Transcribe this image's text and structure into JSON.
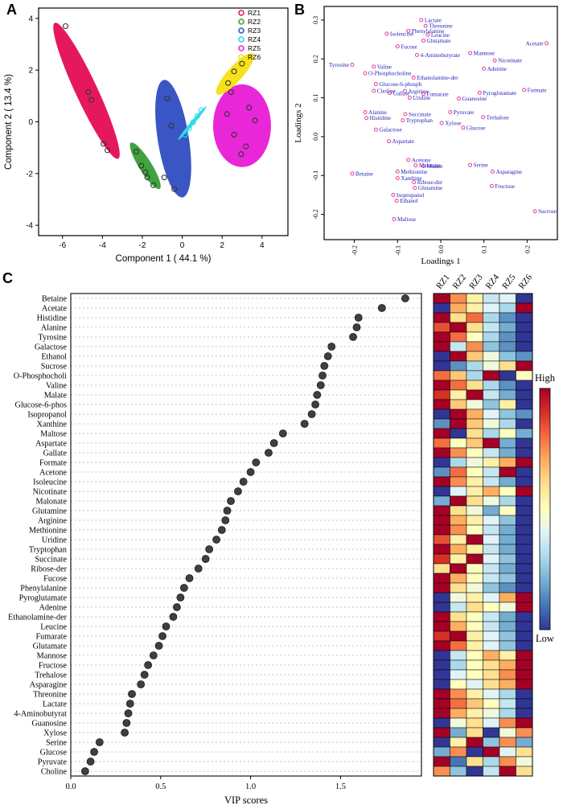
{
  "labels": {
    "a": "A",
    "b": "B",
    "c": "C"
  },
  "colors": {
    "loading_point": "#e8399a",
    "loading_label": "#2424bb",
    "vip_dot": "#3f3f3f",
    "grid": "#b5b5b5",
    "heat_stops": [
      "#313695",
      "#4575B4",
      "#74ADD1",
      "#ABD9E9",
      "#E0F3F8",
      "#FFFFBF",
      "#FEE090",
      "#FDAE61",
      "#F46D43",
      "#D73027",
      "#A50026"
    ]
  },
  "chart_data": [
    {
      "id": "pca_scores",
      "type": "scatter",
      "xlabel": "Component 1 ( 44.1 %)",
      "ylabel": "Component 2 ( 13.4 %)",
      "xlim": [
        -7.2,
        5.3
      ],
      "ylim": [
        -4.4,
        4.4
      ],
      "xticks": [
        -6,
        -4,
        -2,
        0,
        2,
        4
      ],
      "yticks": [
        -4,
        -2,
        0,
        2,
        4
      ],
      "legend_position": "top-right",
      "groups": [
        {
          "label": "RZ1",
          "color": "#e5185e",
          "point_color": "#333333",
          "ellipse": {
            "cx": -4.8,
            "cy": 1.2,
            "rx": 0.55,
            "ry": 2.9,
            "rot": -25
          },
          "points": [
            [
              -5.85,
              3.7
            ],
            [
              -4.7,
              1.15
            ],
            [
              -4.55,
              0.85
            ],
            [
              -3.95,
              -0.85
            ],
            [
              -3.75,
              -1.1
            ]
          ]
        },
        {
          "label": "RZ2",
          "color": "#3fa33f",
          "point_color": "#333333",
          "ellipse": {
            "cx": -1.85,
            "cy": -1.7,
            "rx": 0.32,
            "ry": 1.05,
            "rot": -32
          },
          "points": [
            [
              -2.3,
              -1.15
            ],
            [
              -2.05,
              -1.7
            ],
            [
              -1.85,
              -1.95
            ],
            [
              -1.75,
              -2.15
            ],
            [
              -1.45,
              -2.45
            ]
          ]
        },
        {
          "label": "RZ3",
          "color": "#3a55c4",
          "point_color": "#333333",
          "ellipse": {
            "cx": -0.45,
            "cy": -0.65,
            "rx": 0.78,
            "ry": 2.3,
            "rot": -9
          },
          "points": [
            [
              -0.75,
              0.9
            ],
            [
              -0.55,
              -0.15
            ],
            [
              -0.9,
              -2.15
            ],
            [
              -0.4,
              -2.6
            ]
          ]
        },
        {
          "label": "RZ4",
          "color": "#2fd9e8",
          "point_color": "#2fd9e8",
          "ellipse": {
            "cx": 0.5,
            "cy": -0.05,
            "rx": 0.09,
            "ry": 0.85,
            "rot": 40
          },
          "points": [
            [
              0.15,
              -0.5
            ],
            [
              0.35,
              -0.25
            ],
            [
              0.55,
              -0.02
            ],
            [
              0.75,
              0.22
            ],
            [
              0.95,
              0.45
            ]
          ]
        },
        {
          "label": "RZ5",
          "color": "#ea27d8",
          "point_color": "#333333",
          "ellipse": {
            "cx": 3.0,
            "cy": -0.15,
            "rx": 1.45,
            "ry": 1.6,
            "rot": 0
          },
          "points": [
            [
              2.25,
              0.3
            ],
            [
              2.6,
              -0.5
            ],
            [
              3.2,
              -0.95
            ],
            [
              3.65,
              0.05
            ],
            [
              2.95,
              -1.25
            ],
            [
              3.35,
              0.55
            ]
          ]
        },
        {
          "label": "RZ6",
          "color": "#f7e11c",
          "point_color": "#333333",
          "ellipse": {
            "cx": 2.65,
            "cy": 1.85,
            "rx": 0.38,
            "ry": 1.05,
            "rot": 42
          },
          "points": [
            [
              2.3,
              1.5
            ],
            [
              2.6,
              1.95
            ],
            [
              3.0,
              2.25
            ],
            [
              2.45,
              1.15
            ]
          ]
        }
      ]
    },
    {
      "id": "loadings",
      "type": "scatter",
      "xlabel": "Loadings 1",
      "ylabel": "Loadings 2",
      "xlim": [
        -0.27,
        0.27
      ],
      "ylim": [
        -0.265,
        0.335
      ],
      "xticks": [
        "-0.2",
        "-0.1",
        "0.0",
        "0.1",
        "0.2"
      ],
      "yticks": [
        "-0.2",
        "-0.1",
        "0.0",
        "0.1",
        "0.2",
        "0.3"
      ],
      "points": [
        {
          "l": "Lactate",
          "x": -0.045,
          "y": 0.3
        },
        {
          "l": "Threonine",
          "x": -0.035,
          "y": 0.285
        },
        {
          "l": "Phenylalanine",
          "x": -0.075,
          "y": 0.272
        },
        {
          "l": "Leucine",
          "x": -0.03,
          "y": 0.262
        },
        {
          "l": "Glutamate",
          "x": -0.04,
          "y": 0.247
        },
        {
          "l": "Isoleucine",
          "x": -0.125,
          "y": 0.265
        },
        {
          "l": "Fucose",
          "x": -0.1,
          "y": 0.232
        },
        {
          "l": "4-Aminobutyrate",
          "x": -0.055,
          "y": 0.21
        },
        {
          "l": "Mannose",
          "x": 0.068,
          "y": 0.215
        },
        {
          "l": "Acetate",
          "x": 0.245,
          "y": 0.24,
          "s": "left"
        },
        {
          "l": "Nicotinate",
          "x": 0.125,
          "y": 0.196
        },
        {
          "l": "Adenine",
          "x": 0.1,
          "y": 0.175
        },
        {
          "l": "Tyrosine",
          "x": -0.205,
          "y": 0.185,
          "s": "left"
        },
        {
          "l": "Valine",
          "x": -0.155,
          "y": 0.18
        },
        {
          "l": "O-Phosphocholine",
          "x": -0.175,
          "y": 0.163
        },
        {
          "l": "Ethanolamine-der",
          "x": -0.063,
          "y": 0.152
        },
        {
          "l": "Glucose-6-phosph",
          "x": -0.15,
          "y": 0.135
        },
        {
          "l": "Choline",
          "x": -0.155,
          "y": 0.118
        },
        {
          "l": "Gallate",
          "x": -0.118,
          "y": 0.112
        },
        {
          "l": "Arginine",
          "x": -0.083,
          "y": 0.117
        },
        {
          "l": "Fumarate",
          "x": -0.04,
          "y": 0.11
        },
        {
          "l": "Uridine",
          "x": -0.072,
          "y": 0.1
        },
        {
          "l": "Guanosine",
          "x": 0.042,
          "y": 0.098
        },
        {
          "l": "Pyroglutamate",
          "x": 0.09,
          "y": 0.113
        },
        {
          "l": "Formate",
          "x": 0.193,
          "y": 0.12
        },
        {
          "l": "Alanine",
          "x": -0.175,
          "y": 0.063
        },
        {
          "l": "Histidine",
          "x": -0.172,
          "y": 0.048
        },
        {
          "l": "Succinate",
          "x": -0.082,
          "y": 0.058
        },
        {
          "l": "Tryptophan",
          "x": -0.088,
          "y": 0.042
        },
        {
          "l": "Pyruvate",
          "x": 0.022,
          "y": 0.063
        },
        {
          "l": "Trehalose",
          "x": 0.098,
          "y": 0.05
        },
        {
          "l": "Xylose",
          "x": 0.002,
          "y": 0.035
        },
        {
          "l": "Glucose",
          "x": 0.052,
          "y": 0.023
        },
        {
          "l": "Galactose",
          "x": -0.15,
          "y": 0.018
        },
        {
          "l": "Aspartate",
          "x": -0.12,
          "y": -0.012
        },
        {
          "l": "Acetone",
          "x": -0.075,
          "y": -0.06
        },
        {
          "l": "Malonate",
          "x": -0.058,
          "y": -0.074
        },
        {
          "l": "Malate",
          "x": -0.04,
          "y": -0.076
        },
        {
          "l": "Methionine",
          "x": -0.1,
          "y": -0.09
        },
        {
          "l": "Serine",
          "x": 0.068,
          "y": -0.073
        },
        {
          "l": "Asparagine",
          "x": 0.12,
          "y": -0.09
        },
        {
          "l": "Betaine",
          "x": -0.205,
          "y": -0.095
        },
        {
          "l": "Xanthine",
          "x": -0.1,
          "y": -0.107
        },
        {
          "l": "Ribose-der",
          "x": -0.062,
          "y": -0.117
        },
        {
          "l": "Glutamine",
          "x": -0.06,
          "y": -0.132
        },
        {
          "l": "Fructose",
          "x": 0.118,
          "y": -0.127
        },
        {
          "l": "Isopropanol",
          "x": -0.11,
          "y": -0.15
        },
        {
          "l": "Ethanol",
          "x": -0.102,
          "y": -0.165
        },
        {
          "l": "Sucrose",
          "x": 0.218,
          "y": -0.192
        },
        {
          "l": "Maltose",
          "x": -0.108,
          "y": -0.212
        }
      ]
    },
    {
      "id": "vip",
      "type": "scatter",
      "xlabel": "VIP scores",
      "xlim": [
        0,
        1.95
      ],
      "xticks": [
        "0.0",
        "0.5",
        "1.0",
        "1.5"
      ],
      "categories": [
        "Betaine",
        "Acetate",
        "Histidine",
        "Alanine",
        "Tyrosine",
        "Galactose",
        "Ethanol",
        "Sucrose",
        "O-Phosphocholi",
        "Valine",
        "Malate",
        "Glucose-6-phos",
        "Isopropanol",
        "Xanthine",
        "Maltose",
        "Aspartate",
        "Gallate",
        "Formate",
        "Acetone",
        "Isoleucine",
        "Nicotinate",
        "Malonate",
        "Glutamine",
        "Arginine",
        "Methionine",
        "Uridine",
        "Tryptophan",
        "Succinate",
        "Ribose-der",
        "Fucose",
        "Phenylalanine",
        "Pyroglutamate",
        "Adenine",
        "Ethanolamine-der",
        "Leucine",
        "Fumarate",
        "Glutamate",
        "Mannose",
        "Fructose",
        "Trehalose",
        "Asparagine",
        "Threonine",
        "Lactate",
        "4-Aminobutyrat",
        "Guanosine",
        "Xylose",
        "Serine",
        "Glucose",
        "Pyruvate",
        "Choline"
      ],
      "values": [
        1.86,
        1.73,
        1.6,
        1.59,
        1.57,
        1.45,
        1.43,
        1.41,
        1.4,
        1.39,
        1.37,
        1.36,
        1.34,
        1.3,
        1.18,
        1.13,
        1.1,
        1.03,
        1.0,
        0.96,
        0.93,
        0.89,
        0.87,
        0.86,
        0.84,
        0.81,
        0.77,
        0.75,
        0.71,
        0.66,
        0.63,
        0.61,
        0.59,
        0.57,
        0.53,
        0.51,
        0.49,
        0.46,
        0.43,
        0.41,
        0.39,
        0.34,
        0.33,
        0.32,
        0.31,
        0.3,
        0.16,
        0.13,
        0.11,
        0.08
      ]
    },
    {
      "id": "heatmap",
      "type": "heatmap",
      "columns": [
        "RZ1",
        "RZ2",
        "RZ3",
        "RZ4",
        "RZ5",
        "RZ6"
      ],
      "colorbar": {
        "high": "High",
        "low": "Low"
      },
      "values": [
        [
          1.0,
          0.75,
          0.55,
          0.35,
          0.4,
          0.0
        ],
        [
          0.0,
          0.7,
          0.55,
          0.4,
          0.3,
          1.0
        ],
        [
          1.0,
          0.6,
          0.8,
          0.3,
          0.15,
          0.0
        ],
        [
          0.85,
          1.0,
          0.6,
          0.35,
          0.2,
          0.0
        ],
        [
          1.0,
          0.8,
          0.5,
          0.3,
          0.15,
          0.0
        ],
        [
          1.0,
          0.35,
          0.75,
          0.25,
          0.15,
          0.0
        ],
        [
          0.0,
          1.0,
          0.65,
          0.45,
          0.25,
          0.15
        ],
        [
          0.0,
          0.15,
          0.3,
          0.45,
          0.6,
          1.0
        ],
        [
          0.8,
          0.65,
          0.3,
          1.0,
          0.0,
          0.5
        ],
        [
          1.0,
          0.8,
          0.6,
          0.3,
          0.15,
          0.0
        ],
        [
          0.9,
          0.55,
          1.0,
          0.35,
          0.2,
          0.0
        ],
        [
          1.0,
          0.65,
          0.45,
          0.25,
          0.55,
          0.0
        ],
        [
          0.0,
          1.0,
          0.7,
          0.4,
          0.25,
          0.15
        ],
        [
          0.15,
          1.0,
          0.65,
          0.45,
          0.3,
          0.0
        ],
        [
          1.0,
          0.0,
          0.6,
          0.3,
          0.5,
          0.2
        ],
        [
          0.8,
          0.5,
          0.65,
          1.0,
          0.2,
          0.0
        ],
        [
          1.0,
          0.75,
          0.5,
          0.35,
          0.2,
          0.0
        ],
        [
          0.0,
          0.3,
          0.45,
          0.55,
          0.7,
          1.0
        ],
        [
          0.15,
          0.8,
          0.5,
          0.35,
          1.0,
          0.0
        ],
        [
          1.0,
          0.75,
          0.55,
          0.35,
          0.2,
          0.0
        ],
        [
          0.0,
          0.4,
          0.55,
          0.7,
          0.5,
          1.0
        ],
        [
          0.2,
          1.0,
          0.6,
          0.45,
          0.3,
          0.0
        ],
        [
          1.0,
          0.6,
          0.45,
          0.2,
          0.5,
          0.0
        ],
        [
          1.0,
          0.7,
          0.55,
          0.4,
          0.25,
          0.0
        ],
        [
          1.0,
          0.75,
          0.5,
          0.35,
          0.2,
          0.0
        ],
        [
          0.85,
          0.55,
          1.0,
          0.4,
          0.2,
          0.0
        ],
        [
          1.0,
          0.7,
          0.55,
          0.35,
          0.2,
          0.0
        ],
        [
          0.9,
          0.55,
          1.0,
          0.4,
          0.25,
          0.0
        ],
        [
          0.6,
          1.0,
          0.5,
          0.35,
          0.2,
          0.0
        ],
        [
          1.0,
          0.7,
          0.5,
          0.35,
          0.25,
          0.0
        ],
        [
          1.0,
          0.6,
          0.45,
          0.25,
          0.15,
          0.0
        ],
        [
          0.0,
          0.45,
          0.55,
          0.4,
          0.7,
          1.0
        ],
        [
          0.0,
          0.35,
          0.6,
          0.5,
          0.45,
          1.0
        ],
        [
          1.0,
          0.6,
          0.5,
          0.35,
          0.2,
          0.0
        ],
        [
          1.0,
          0.7,
          0.5,
          0.35,
          0.2,
          0.0
        ],
        [
          0.9,
          1.0,
          0.55,
          0.4,
          0.25,
          0.0
        ],
        [
          1.0,
          0.8,
          0.55,
          0.4,
          0.25,
          0.0
        ],
        [
          0.0,
          0.35,
          0.5,
          0.7,
          0.55,
          1.0
        ],
        [
          0.0,
          0.3,
          0.5,
          0.6,
          0.7,
          1.0
        ],
        [
          0.0,
          0.4,
          0.5,
          0.6,
          0.75,
          1.0
        ],
        [
          0.0,
          0.5,
          0.4,
          0.6,
          0.7,
          1.0
        ],
        [
          1.0,
          0.75,
          0.55,
          0.4,
          0.3,
          0.0
        ],
        [
          1.0,
          0.8,
          0.65,
          0.5,
          0.35,
          0.0
        ],
        [
          1.0,
          0.7,
          0.55,
          0.45,
          0.3,
          0.0
        ],
        [
          0.0,
          0.45,
          0.6,
          0.4,
          0.75,
          1.0
        ],
        [
          1.0,
          0.2,
          0.6,
          0.0,
          0.45,
          0.75
        ],
        [
          0.0,
          0.55,
          1.0,
          0.25,
          0.75,
          0.2
        ],
        [
          0.2,
          0.75,
          0.0,
          1.0,
          0.4,
          0.6
        ],
        [
          1.0,
          0.1,
          0.6,
          0.3,
          0.75,
          0.45
        ],
        [
          0.75,
          0.25,
          0.0,
          0.35,
          1.0,
          0.6
        ]
      ]
    }
  ]
}
